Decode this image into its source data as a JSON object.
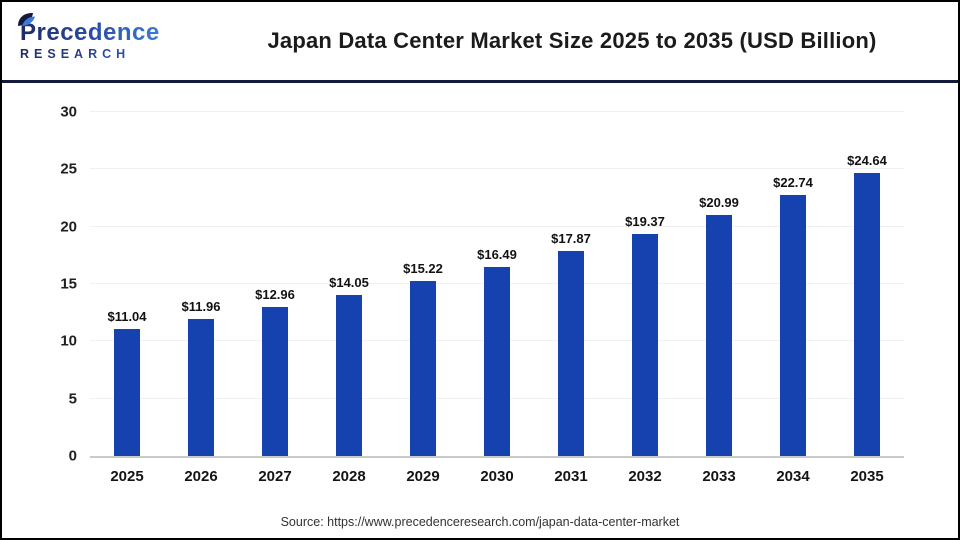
{
  "logo": {
    "name": "Precedence",
    "subtext": "RESEARCH"
  },
  "chart_data": {
    "type": "bar",
    "title": "Japan Data Center Market Size 2025 to 2035 (USD Billion)",
    "categories": [
      "2025",
      "2026",
      "2027",
      "2028",
      "2029",
      "2030",
      "2031",
      "2032",
      "2033",
      "2034",
      "2035"
    ],
    "values": [
      11.04,
      11.96,
      12.96,
      14.05,
      15.22,
      16.49,
      17.87,
      19.37,
      20.99,
      22.74,
      24.64
    ],
    "value_labels": [
      "$11.04",
      "$11.96",
      "$12.96",
      "$14.05",
      "$15.22",
      "$16.49",
      "$17.87",
      "$19.37",
      "$20.99",
      "$22.74",
      "$24.64"
    ],
    "xlabel": "",
    "ylabel": "",
    "ylim": [
      0,
      30
    ],
    "yticks": [
      0,
      5,
      10,
      15,
      20,
      25,
      30
    ],
    "grid": true,
    "legend": "none",
    "bar_color": "#1542ae"
  },
  "footer": {
    "source": "Source: https://www.precedenceresearch.com/japan-data-center-market"
  },
  "colors": {
    "bar_blue": "#1542ae",
    "divider_navy": "#141a3c",
    "gridline_gray": "#f0f0f0",
    "axis_gray": "#c9c9c9",
    "logo_gradient_start": "#1e2a66",
    "logo_gradient_end": "#3b7bd8"
  }
}
